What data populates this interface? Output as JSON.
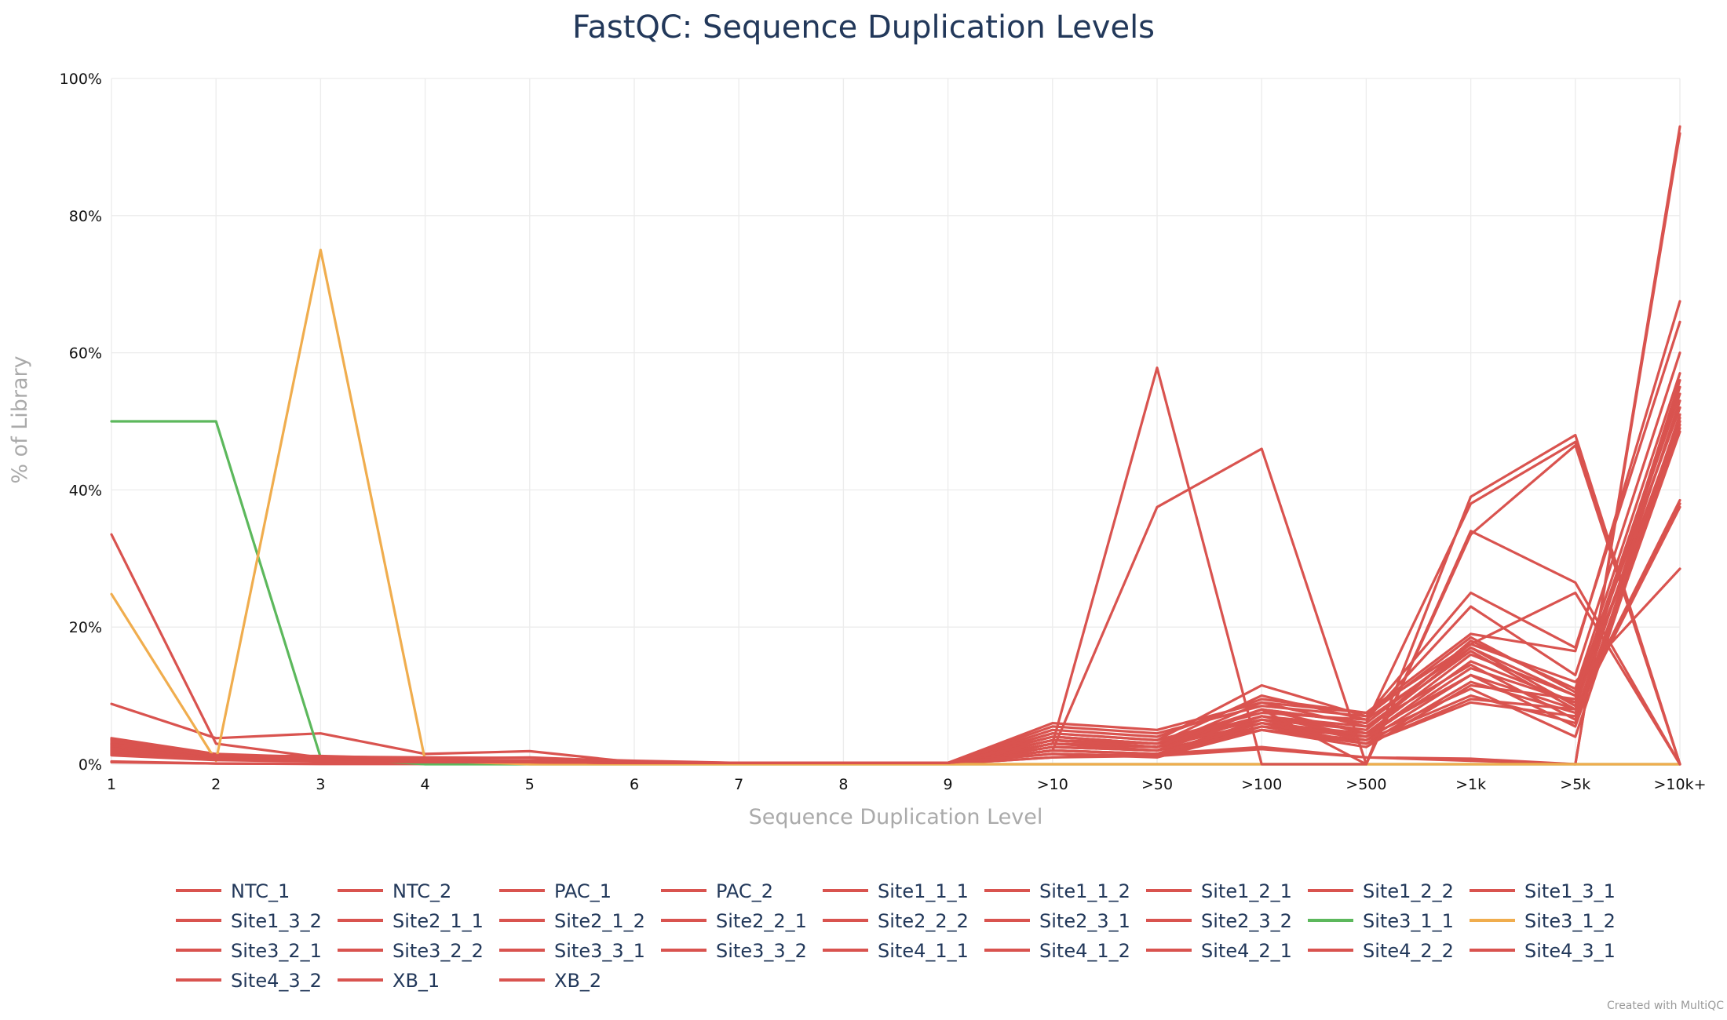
{
  "chart_data": {
    "type": "line",
    "title": "FastQC: Sequence Duplication Levels",
    "xlabel": "Sequence Duplication Level",
    "ylabel": "% of Library",
    "categories": [
      "1",
      "2",
      "3",
      "4",
      "5",
      "6",
      "7",
      "8",
      "9",
      ">10",
      ">50",
      ">100",
      ">500",
      ">1k",
      ">5k",
      ">10k+"
    ],
    "ylim": [
      0,
      100
    ],
    "yticks": [
      "0%",
      "20%",
      "40%",
      "60%",
      "80%",
      "100%"
    ],
    "grid": true,
    "legend_position": "bottom",
    "credit": "Created with MultiQC",
    "series": [
      {
        "name": "NTC_1",
        "color": "#d9534f",
        "values": [
          0.3,
          0.1,
          0.05,
          0.05,
          0.05,
          0.05,
          0.05,
          0.05,
          0.05,
          1.0,
          1.5,
          2.5,
          1.0,
          0.8,
          0,
          93
        ]
      },
      {
        "name": "NTC_2",
        "color": "#d9534f",
        "values": [
          0.4,
          0.1,
          0.05,
          0.05,
          0.05,
          0.05,
          0.05,
          0.05,
          0.05,
          1.0,
          1.2,
          2.2,
          1.0,
          0.5,
          0,
          92
        ]
      },
      {
        "name": "PAC_1",
        "color": "#d9534f",
        "values": [
          33.5,
          3.0,
          1.0,
          0.5,
          0.5,
          0.3,
          0.1,
          0.1,
          0.1,
          3.0,
          2.5,
          8.0,
          6.0,
          38.0,
          47.0,
          0
        ]
      },
      {
        "name": "PAC_2",
        "color": "#d9534f",
        "values": [
          8.8,
          3.8,
          4.5,
          1.5,
          1.9,
          0.3,
          0.1,
          0.1,
          0.1,
          2.0,
          37.5,
          46.0,
          0,
          39.0,
          48.0,
          0
        ]
      },
      {
        "name": "Site1_1_1",
        "color": "#d9534f",
        "values": [
          3.8,
          1.5,
          1.0,
          0.6,
          0.5,
          0.3,
          0.2,
          0.2,
          0.2,
          6.0,
          5.0,
          9.0,
          7.5,
          19.0,
          16.5,
          67.5
        ]
      },
      {
        "name": "Site1_1_2",
        "color": "#d9534f",
        "values": [
          3.5,
          1.4,
          0.9,
          0.6,
          0.5,
          0.3,
          0.2,
          0.2,
          0.2,
          5.5,
          4.5,
          8.5,
          7.0,
          25.0,
          17.0,
          64.5
        ]
      },
      {
        "name": "Site1_2_1",
        "color": "#d9534f",
        "values": [
          3.0,
          1.2,
          0.8,
          0.5,
          0.5,
          0.3,
          0.2,
          0.2,
          0.2,
          4.5,
          3.5,
          7.5,
          6.5,
          23.0,
          13.0,
          60.0
        ]
      },
      {
        "name": "Site1_2_2",
        "color": "#d9534f",
        "values": [
          2.8,
          1.1,
          0.8,
          0.5,
          0.4,
          0.3,
          0.2,
          0.2,
          0.2,
          4.0,
          3.0,
          7.0,
          5.0,
          18.0,
          11.0,
          57.0
        ]
      },
      {
        "name": "Site1_3_1",
        "color": "#d9534f",
        "values": [
          2.5,
          1.0,
          0.7,
          0.5,
          0.4,
          0.3,
          0.2,
          0.2,
          0.2,
          3.5,
          3.0,
          6.5,
          5.0,
          17.0,
          10.0,
          55.0
        ]
      },
      {
        "name": "Site1_3_2",
        "color": "#d9534f",
        "values": [
          2.4,
          1.0,
          0.7,
          0.5,
          0.4,
          0.3,
          0.2,
          0.2,
          0.2,
          3.0,
          2.5,
          6.0,
          4.5,
          16.0,
          10.0,
          52.0
        ]
      },
      {
        "name": "Site2_1_1",
        "color": "#d9534f",
        "values": [
          2.2,
          0.9,
          0.7,
          0.4,
          0.4,
          0.2,
          0.2,
          0.2,
          0.2,
          3.0,
          2.5,
          6.0,
          4.0,
          15.0,
          9.0,
          50.0
        ]
      },
      {
        "name": "Site2_1_2",
        "color": "#d9534f",
        "values": [
          2.0,
          0.9,
          0.6,
          0.4,
          0.4,
          0.2,
          0.2,
          0.2,
          0.2,
          2.5,
          2.0,
          5.5,
          4.0,
          14.0,
          9.0,
          49.0
        ]
      },
      {
        "name": "Site2_2_1",
        "color": "#d9534f",
        "values": [
          1.8,
          0.8,
          0.6,
          0.4,
          0.3,
          0.2,
          0.2,
          0.2,
          0.2,
          2.5,
          2.0,
          5.0,
          3.5,
          13.0,
          8.0,
          38.0
        ]
      },
      {
        "name": "Site2_2_2",
        "color": "#d9534f",
        "values": [
          1.5,
          0.7,
          0.5,
          0.4,
          0.3,
          0.2,
          0.2,
          0.2,
          0.2,
          2.0,
          1.5,
          5.0,
          3.0,
          12.0,
          7.5,
          37.5
        ]
      },
      {
        "name": "Site2_3_1",
        "color": "#d9534f",
        "values": [
          3.2,
          1.3,
          0.8,
          0.5,
          0.4,
          0.3,
          0.2,
          0.2,
          0.2,
          4.0,
          3.0,
          8.0,
          6.0,
          17.5,
          12.0,
          28.5
        ]
      },
      {
        "name": "Site2_3_2",
        "color": "#d9534f",
        "values": [
          2.6,
          1.1,
          0.7,
          0.5,
          0.4,
          0.3,
          0.2,
          0.2,
          0.2,
          3.5,
          2.5,
          7.0,
          5.5,
          16.5,
          8.0,
          38.5
        ]
      },
      {
        "name": "Site3_1_1",
        "color": "#5cb85c",
        "values": [
          50,
          50,
          1.0,
          0,
          0,
          0,
          0,
          0,
          0,
          0,
          0,
          0,
          0,
          0,
          0,
          0
        ]
      },
      {
        "name": "Site3_1_2",
        "color": "#f0ad4e",
        "values": [
          24.8,
          0.5,
          75,
          0.5,
          0,
          0,
          0,
          0,
          0,
          0,
          0,
          0,
          0,
          0,
          0,
          0
        ]
      },
      {
        "name": "Site3_2_1",
        "color": "#d9534f",
        "values": [
          3.0,
          1.2,
          0.8,
          0.5,
          0.4,
          0.3,
          0.2,
          0.2,
          0.2,
          4.5,
          3.5,
          11.5,
          7.0,
          18.5,
          10.5,
          52.0
        ]
      },
      {
        "name": "Site3_2_2",
        "color": "#d9534f",
        "values": [
          2.7,
          1.1,
          0.7,
          0.5,
          0.4,
          0.3,
          0.2,
          0.2,
          0.2,
          4.0,
          3.0,
          10.0,
          6.5,
          17.0,
          8.5,
          50.5
        ]
      },
      {
        "name": "Site3_3_1",
        "color": "#d9534f",
        "values": [
          2.3,
          1.0,
          0.7,
          0.4,
          0.4,
          0.2,
          0.2,
          0.2,
          0.2,
          3.5,
          2.5,
          9.0,
          5.5,
          14.5,
          6.5,
          49.5
        ]
      },
      {
        "name": "Site3_3_2",
        "color": "#d9534f",
        "values": [
          2.1,
          0.9,
          0.6,
          0.4,
          0.3,
          0.2,
          0.2,
          0.2,
          0.2,
          3.0,
          2.0,
          8.0,
          4.5,
          13.0,
          5.5,
          48.5
        ]
      },
      {
        "name": "Site4_1_1",
        "color": "#d9534f",
        "values": [
          1.9,
          0.8,
          0.6,
          0.4,
          0.3,
          0.2,
          0.2,
          0.2,
          0.2,
          2.5,
          2.0,
          7.0,
          4.0,
          11.0,
          4.0,
          50.0
        ]
      },
      {
        "name": "Site4_1_2",
        "color": "#d9534f",
        "values": [
          1.7,
          0.8,
          0.5,
          0.4,
          0.3,
          0.2,
          0.2,
          0.2,
          0.2,
          2.0,
          1.5,
          6.5,
          3.5,
          10.0,
          6.0,
          51.0
        ]
      },
      {
        "name": "Site4_2_1",
        "color": "#d9534f",
        "values": [
          1.6,
          0.7,
          0.5,
          0.3,
          0.3,
          0.2,
          0.2,
          0.2,
          0.2,
          2.0,
          1.5,
          6.0,
          3.0,
          9.0,
          7.0,
          53.0
        ]
      },
      {
        "name": "Site4_2_2",
        "color": "#d9534f",
        "values": [
          1.4,
          0.7,
          0.5,
          0.3,
          0.3,
          0.2,
          0.2,
          0.2,
          0.2,
          1.5,
          1.2,
          5.5,
          3.0,
          9.5,
          8.0,
          56.0
        ]
      },
      {
        "name": "Site4_3_1",
        "color": "#d9534f",
        "values": [
          1.3,
          0.6,
          0.4,
          0.3,
          0.3,
          0.2,
          0.2,
          0.2,
          0.2,
          1.5,
          1.0,
          5.0,
          2.5,
          11.5,
          9.5,
          54.0
        ]
      },
      {
        "name": "Site4_3_2",
        "color": "#d9534f",
        "values": [
          2.9,
          1.2,
          0.8,
          0.5,
          0.4,
          0.3,
          0.2,
          0.2,
          0.2,
          5.0,
          4.0,
          9.5,
          7.5,
          17.5,
          25.0,
          0
        ]
      },
      {
        "name": "XB_1",
        "color": "#d9534f",
        "values": [
          3.6,
          1.3,
          1.1,
          1.0,
          0.9,
          0.5,
          0.2,
          0.2,
          0.2,
          3.0,
          57.8,
          0,
          0,
          34.0,
          26.5,
          0
        ]
      },
      {
        "name": "XB_2",
        "color": "#d9534f",
        "values": [
          3.3,
          1.2,
          1.2,
          0.8,
          1.0,
          0.4,
          0.2,
          0.2,
          0.2,
          3.5,
          2.5,
          8.0,
          0,
          33.5,
          46.5,
          0
        ]
      }
    ]
  }
}
